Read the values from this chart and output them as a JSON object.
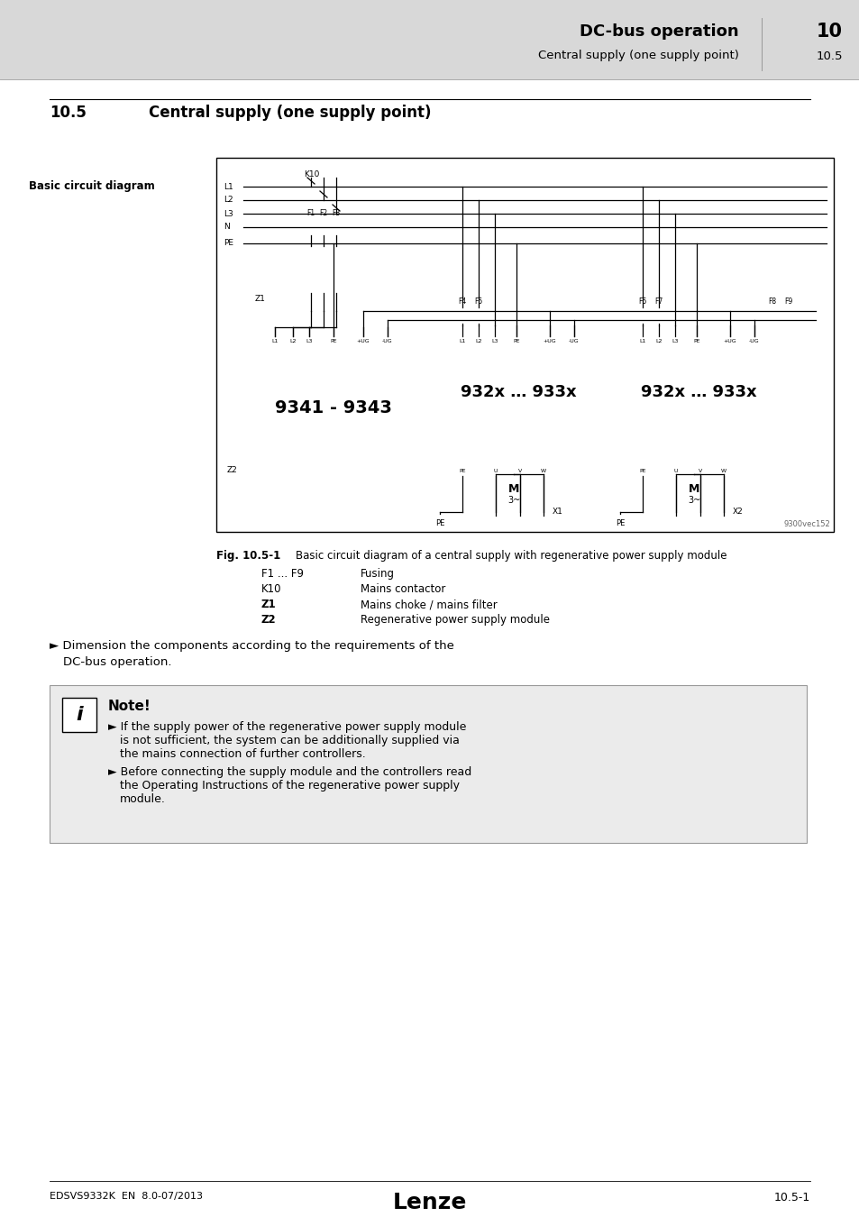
{
  "page_bg": "#e0e0e0",
  "content_bg": "#ffffff",
  "header_bg": "#d8d8d8",
  "header_title": "DC-bus operation",
  "header_chapter": "10",
  "header_subtitle": "Central supply (one supply point)",
  "header_section": "10.5",
  "section_title": "10.5",
  "section_heading": "Central supply (one supply point)",
  "sidebar_label": "Basic circuit diagram",
  "fig_caption_bold": "Fig. 10.5-1",
  "fig_caption_text": "Basic circuit diagram of a central supply with regenerative power supply module",
  "legend": [
    [
      "F1 ... F9",
      "Fusing"
    ],
    [
      "K10",
      "Mains contactor"
    ],
    [
      "Z1",
      "Mains choke / mains filter"
    ],
    [
      "Z2",
      "Regenerative power supply module"
    ]
  ],
  "note_title": "Note!",
  "note_bullet1_lines": [
    "► If the supply power of the regenerative power supply module",
    "is not sufficient, the system can be additionally supplied via",
    "the mains connection of further controllers."
  ],
  "note_bullet2_lines": [
    "► Before connecting the supply module and the controllers read",
    "the Operating Instructions of the regenerative power supply",
    "module."
  ],
  "bullet_line1": "► Dimension the components according to the requirements of the",
  "bullet_line2": "DC-bus operation.",
  "footer_left": "EDSVS9332K  EN  8.0-07/2013",
  "footer_center": "Lenze",
  "footer_right": "10.5-1",
  "diagram_ref": "9300vec152",
  "box1_label": "9341 - 9343",
  "box2_label": "932x … 933x",
  "box3_label": "932x … 933x"
}
